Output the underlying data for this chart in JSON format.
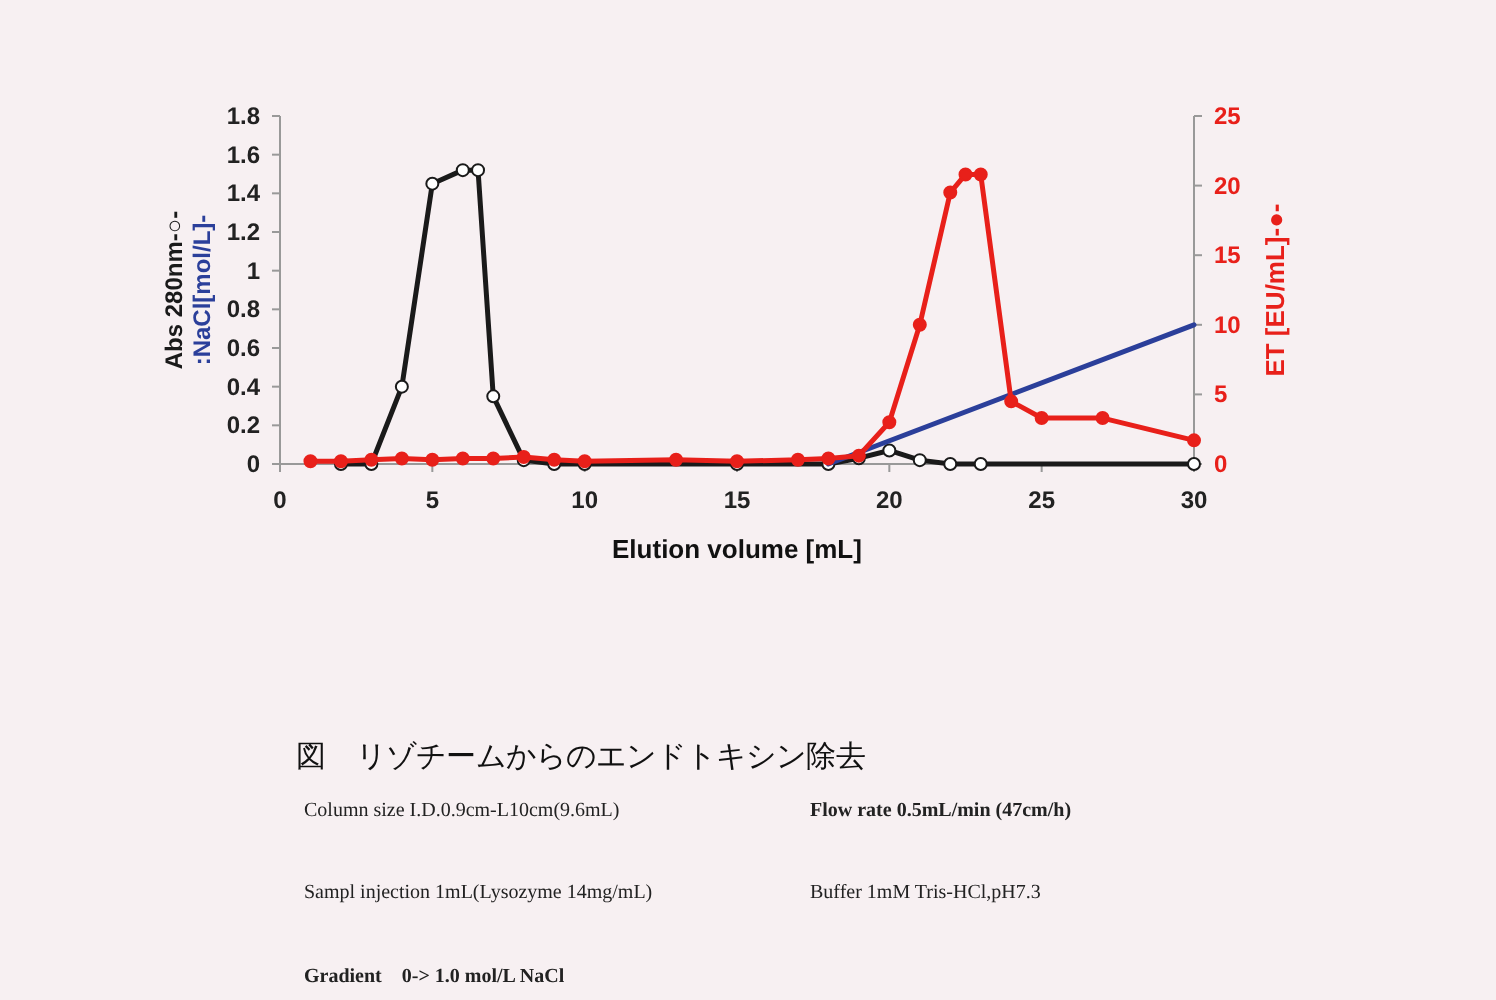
{
  "chart_data": {
    "type": "line",
    "title": "図　リゾチームからのエンドトキシン除去",
    "xlabel": "Elution volume [mL]",
    "ylabel": "Abs 280nm-○-\n:NaCl[mol/L]-",
    "y2label": "ET [EU/mL]-●-",
    "xlim": [
      0,
      30
    ],
    "xticks": [
      0,
      5,
      10,
      15,
      20,
      25,
      30
    ],
    "ylim": [
      0,
      1.8
    ],
    "yticks": [
      0,
      0.2,
      0.4,
      0.6,
      0.8,
      1,
      1.2,
      1.4,
      1.6,
      1.8
    ],
    "y2lim": [
      0,
      25
    ],
    "y2ticks": [
      0,
      5,
      10,
      15,
      20,
      25
    ],
    "series": [
      {
        "color": "#1a1a1a",
        "marker": "circle",
        "x": [
          2,
          3,
          4,
          5,
          6,
          6.5,
          7,
          8,
          9,
          10,
          15,
          18,
          19,
          20,
          21,
          22,
          23,
          30
        ],
        "values": [
          0,
          0,
          0.4,
          1.45,
          1.52,
          1.52,
          0.35,
          0.02,
          0,
          0,
          0,
          0,
          0.03,
          0.07,
          0.02,
          0,
          0,
          0
        ]
      },
      {
        "color": "#2b3f9a",
        "marker": "none",
        "x": [
          18,
          30
        ],
        "values": [
          0,
          0.72
        ]
      },
      {
        "color": "#e8201a",
        "marker": "circle",
        "axis": "y2",
        "x": [
          1,
          2,
          3,
          4,
          5,
          6,
          7,
          8,
          9,
          10,
          13,
          15,
          17,
          18,
          19,
          20,
          21,
          22,
          22.5,
          23,
          24,
          25,
          27,
          30
        ],
        "values": [
          0.2,
          0.2,
          0.3,
          0.4,
          0.3,
          0.4,
          0.4,
          0.5,
          0.3,
          0.2,
          0.3,
          0.2,
          0.3,
          0.4,
          0.6,
          3,
          10,
          19.5,
          20.8,
          20.8,
          4.5,
          3.3,
          3.3,
          1.7
        ]
      }
    ],
    "annotations": [
      "Column size I.D.0.9cm-L10cm(9.6mL)",
      "Flow rate 0.5mL/min (47cm/h)",
      "Sampl injection 1mL(Lysozyme 14mg/mL)",
      "Buffer 1mM Tris-HCl,pH7.3",
      "Gradient　0-> 1.0 mol/L NaCl"
    ]
  }
}
